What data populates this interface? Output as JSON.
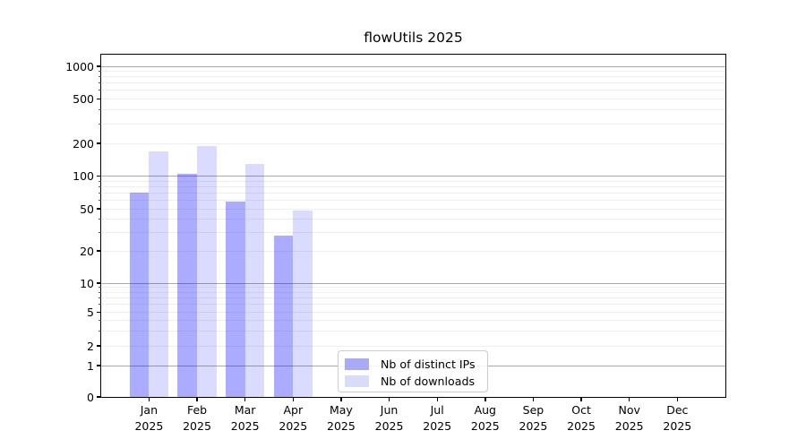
{
  "title": "flowUtils 2025",
  "chart_data": {
    "type": "bar",
    "title": "flowUtils 2025",
    "categories": [
      {
        "month": "Jan",
        "year": "2025"
      },
      {
        "month": "Feb",
        "year": "2025"
      },
      {
        "month": "Mar",
        "year": "2025"
      },
      {
        "month": "Apr",
        "year": "2025"
      },
      {
        "month": "May",
        "year": "2025"
      },
      {
        "month": "Jun",
        "year": "2025"
      },
      {
        "month": "Jul",
        "year": "2025"
      },
      {
        "month": "Aug",
        "year": "2025"
      },
      {
        "month": "Sep",
        "year": "2025"
      },
      {
        "month": "Oct",
        "year": "2025"
      },
      {
        "month": "Nov",
        "year": "2025"
      },
      {
        "month": "Dec",
        "year": "2025"
      }
    ],
    "series": [
      {
        "name": "Nb of distinct IPs",
        "color": "rgba(0,0,255,0.33)",
        "legend_color": "#a9aaf5",
        "values": [
          70,
          104,
          58,
          28,
          0,
          0,
          0,
          0,
          0,
          0,
          0,
          0
        ]
      },
      {
        "name": "Nb of downloads",
        "color": "rgba(0,0,255,0.14)",
        "legend_color": "#d9dcf8",
        "values": [
          168,
          190,
          130,
          48,
          0,
          0,
          0,
          0,
          0,
          0,
          0,
          0
        ]
      }
    ],
    "yscale": "symlog",
    "yticks": [
      0,
      1,
      2,
      5,
      10,
      20,
      50,
      100,
      200,
      500,
      1000
    ],
    "minor_grid_values": [
      2,
      3,
      4,
      5,
      6,
      7,
      8,
      9,
      20,
      30,
      40,
      50,
      60,
      70,
      80,
      90,
      200,
      300,
      400,
      500,
      600,
      700,
      800,
      900
    ],
    "major_grid_values": [
      1,
      10,
      100,
      1000
    ],
    "ylim": [
      0,
      1300
    ],
    "grid": "horizontal",
    "legend_position": "lower center",
    "colors": {
      "major_grid": "#a9a9a9",
      "minor_grid": "#efefef",
      "axis": "#000000",
      "background": "#ffffff"
    }
  }
}
